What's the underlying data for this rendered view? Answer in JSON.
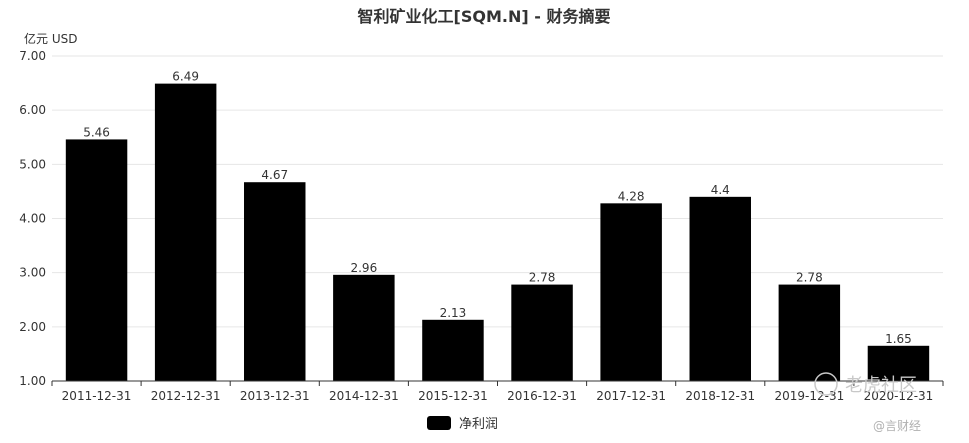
{
  "chart_data": {
    "type": "bar",
    "title": "智利矿业化工[SQM.N] - 财务摘要",
    "ylabel": "亿元  USD",
    "categories": [
      "2011-12-31",
      "2012-12-31",
      "2013-12-31",
      "2014-12-31",
      "2015-12-31",
      "2016-12-31",
      "2017-12-31",
      "2018-12-31",
      "2019-12-31",
      "2020-12-31"
    ],
    "series": [
      {
        "name": "净利润",
        "values": [
          5.46,
          6.49,
          4.67,
          2.96,
          2.13,
          2.78,
          4.28,
          4.4,
          2.78,
          1.65
        ]
      }
    ],
    "value_labels": [
      "5.46",
      "6.49",
      "4.67",
      "2.96",
      "2.13",
      "2.78",
      "4.28",
      "4.4",
      "2.78",
      "1.65"
    ],
    "ylim": [
      1.0,
      7.0
    ],
    "yticks": [
      1.0,
      2.0,
      3.0,
      4.0,
      5.0,
      6.0,
      7.0
    ],
    "ytick_labels": [
      "1.00",
      "2.00",
      "3.00",
      "4.00",
      "5.00",
      "6.00",
      "7.00"
    ],
    "grid": true,
    "legend_position": "bottom-center",
    "bar_color": "#000000"
  },
  "watermark": {
    "main": "老虎社区",
    "sub": "@言财经"
  }
}
